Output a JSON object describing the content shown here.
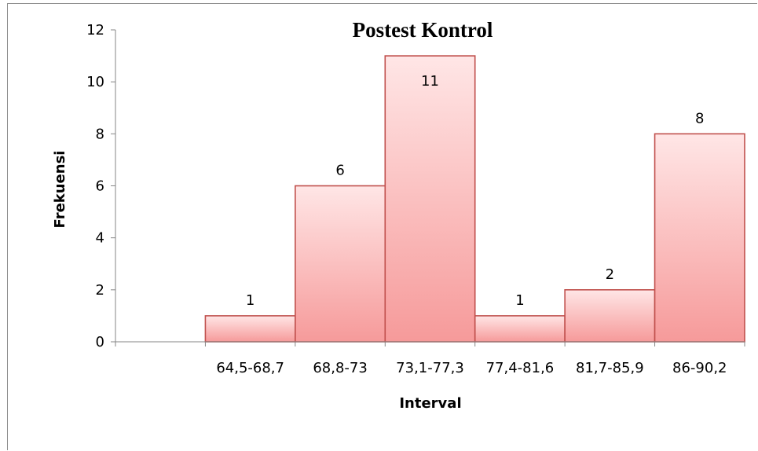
{
  "chart_data": {
    "type": "bar",
    "title": "Postest Kontrol",
    "xlabel": "Interval",
    "ylabel": "Frekuensi",
    "categories": [
      "",
      "64,5-68,7",
      "68,8-73",
      "73,1-77,3",
      "77,4-81,6",
      "81,7-85,9",
      "86-90,2"
    ],
    "values": [
      null,
      1,
      6,
      11,
      1,
      2,
      8
    ],
    "data_labels": [
      "",
      "1",
      "6",
      "11",
      "1",
      "2",
      "8"
    ],
    "ylim": [
      0,
      12
    ],
    "yticks": [
      "0",
      "2",
      "4",
      "6",
      "8",
      "10",
      "12"
    ],
    "grid": false,
    "legend": "none",
    "colors": {
      "bar_top": "#ffe6e6",
      "bar_bottom": "#f69a9a",
      "bar_stroke": "#c0504d",
      "axis": "#868686"
    }
  }
}
